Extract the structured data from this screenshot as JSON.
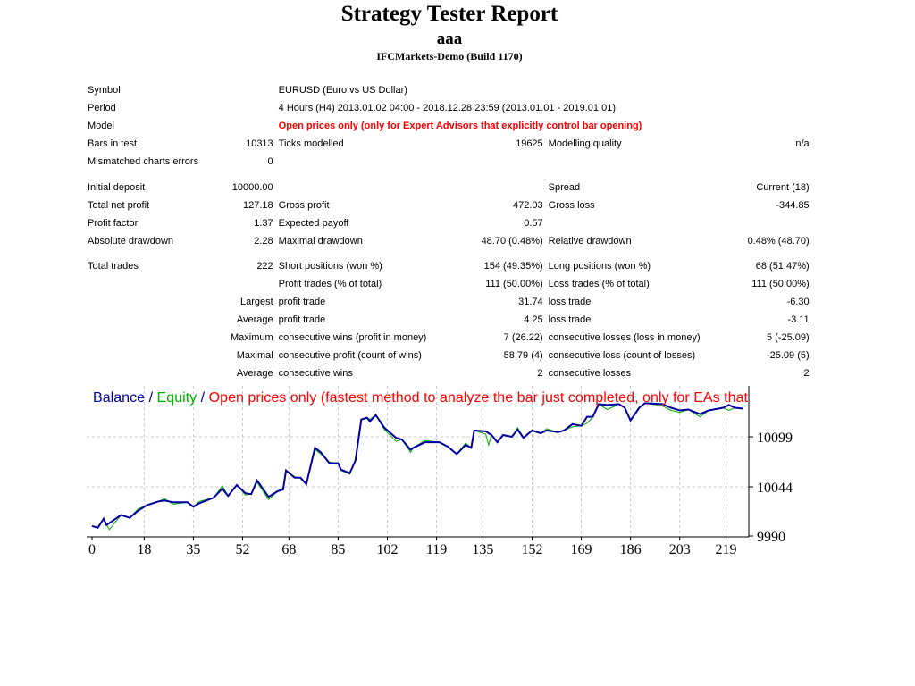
{
  "header": {
    "title": "Strategy Tester Report",
    "expert": "aaa",
    "server": "IFCMarkets-Demo (Build 1170)"
  },
  "info": {
    "symbol_label": "Symbol",
    "symbol": "EURUSD (Euro vs US Dollar)",
    "period_label": "Period",
    "period": "4 Hours (H4) 2013.01.02 04:00 - 2018.12.28 23:59 (2013.01.01 - 2019.01.01)",
    "model_label": "Model",
    "model": "Open prices only (only for Expert Advisors that explicitly control bar opening)",
    "bars_label": "Bars in test",
    "bars": "10313",
    "ticks_label": "Ticks modelled",
    "ticks": "19625",
    "quality_label": "Modelling quality",
    "quality": "n/a",
    "mismatch_label": "Mismatched charts errors",
    "mismatch": "0"
  },
  "results": {
    "deposit_label": "Initial deposit",
    "deposit": "10000.00",
    "spread_label": "Spread",
    "spread": "Current (18)",
    "net_label": "Total net profit",
    "net": "127.18",
    "gross_profit_label": "Gross profit",
    "gross_profit": "472.03",
    "gross_loss_label": "Gross loss",
    "gross_loss": "-344.85",
    "pf_label": "Profit factor",
    "pf": "1.37",
    "payoff_label": "Expected payoff",
    "payoff": "0.57",
    "abs_dd_label": "Absolute drawdown",
    "abs_dd": "2.28",
    "max_dd_label": "Maximal drawdown",
    "max_dd": "48.70 (0.48%)",
    "rel_dd_label": "Relative drawdown",
    "rel_dd": "0.48% (48.70)"
  },
  "trades": {
    "total_label": "Total trades",
    "total": "222",
    "short_label": "Short positions (won %)",
    "short": "154 (49.35%)",
    "long_label": "Long positions (won %)",
    "long": "68 (51.47%)",
    "profit_trades_label": "Profit trades (% of total)",
    "profit_trades": "111 (50.00%)",
    "loss_trades_label": "Loss trades (% of total)",
    "loss_trades": "111 (50.00%)",
    "largest_label": "Largest",
    "largest_profit_label": "profit trade",
    "largest_profit": "31.74",
    "largest_loss_label": "loss trade",
    "largest_loss": "-6.30",
    "average_label": "Average",
    "avg_profit_label": "profit trade",
    "avg_profit": "4.25",
    "avg_loss_label": "loss trade",
    "avg_loss": "-3.11",
    "maximum_label": "Maximum",
    "max_wins_label": "consecutive wins (profit in money)",
    "max_wins": "7 (26.22)",
    "max_losses_label": "consecutive losses (loss in money)",
    "max_losses": "5 (-25.09)",
    "maximal_label": "Maximal",
    "max_profit_label": "consecutive profit (count of wins)",
    "max_profit": "58.79 (4)",
    "max_loss_label": "consecutive loss (count of losses)",
    "max_loss": "-25.09 (5)",
    "average2_label": "Average",
    "avg_wins_label": "consecutive wins",
    "avg_wins": "2",
    "avg_losses_label": "consecutive losses",
    "avg_losses": "2"
  },
  "chart_data": {
    "type": "line",
    "legend": {
      "balance": "Balance",
      "sep": " / ",
      "equity": "Equity",
      "model": "Open prices only (fastest method to analyze the bar just completed, only for EAs that"
    },
    "colors": {
      "balance": "#0000a0",
      "equity": "#00b000",
      "model": "#ff0000"
    },
    "x_ticks": [
      0,
      18,
      35,
      52,
      68,
      85,
      102,
      119,
      135,
      152,
      169,
      186,
      203,
      219
    ],
    "y_ticks": [
      9990,
      10044,
      10099
    ],
    "xlim": [
      0,
      227
    ],
    "ylim": [
      9990,
      10157
    ],
    "grid": true,
    "series": [
      {
        "name": "Balance",
        "x": [
          0,
          2,
          4,
          5,
          10,
          13,
          16,
          19,
          23,
          25,
          28,
          33,
          35,
          37,
          42,
          45,
          47,
          50,
          53,
          55,
          57,
          61,
          64,
          66,
          67,
          70,
          72,
          74,
          77,
          79,
          82,
          85,
          86,
          89,
          91,
          93,
          95,
          96,
          98,
          101,
          105,
          107,
          110,
          111,
          115,
          120,
          123,
          126,
          129,
          131,
          132,
          136,
          138,
          140,
          142,
          145,
          147,
          149,
          152,
          155,
          157,
          161,
          163,
          166,
          169,
          171,
          173,
          175,
          178,
          182,
          184,
          186,
          189,
          191,
          197,
          200,
          203,
          206,
          210,
          213,
          218,
          220,
          222,
          225
        ],
        "y": [
          10001,
          9999,
          10009,
          10002,
          10013,
          10010,
          10018,
          10024,
          10028,
          10029,
          10027,
          10027,
          10022,
          10026,
          10032,
          10042,
          10034,
          10046,
          10037,
          10036,
          10051,
          10033,
          10039,
          10041,
          10062,
          10054,
          10054,
          10047,
          10087,
          10082,
          10070,
          10070,
          10063,
          10059,
          10073,
          10118,
          10120,
          10116,
          10123,
          10109,
          10098,
          10096,
          10085,
          10087,
          10093,
          10093,
          10088,
          10080,
          10090,
          10087,
          10106,
          10105,
          10101,
          10093,
          10101,
          10099,
          10107,
          10098,
          10106,
          10103,
          10106,
          10104,
          10106,
          10113,
          10111,
          10121,
          10121,
          10135,
          10134,
          10135,
          10131,
          10117,
          10131,
          10136,
          10135,
          10131,
          10128,
          10129,
          10124,
          10128,
          10131,
          10134,
          10131,
          10130
        ]
      },
      {
        "name": "Equity",
        "x": [
          0,
          2,
          4,
          6,
          10,
          13,
          16,
          19,
          23,
          25,
          28,
          33,
          35,
          37,
          42,
          45,
          47,
          50,
          53,
          55,
          57,
          61,
          64,
          66,
          67,
          70,
          72,
          74,
          77,
          79,
          82,
          85,
          86,
          89,
          91,
          93,
          95,
          96,
          98,
          101,
          105,
          107,
          110,
          111,
          115,
          120,
          123,
          126,
          129,
          131,
          132,
          136,
          137,
          138,
          140,
          142,
          145,
          147,
          149,
          152,
          155,
          157,
          161,
          163,
          166,
          169,
          171,
          173,
          175,
          178,
          182,
          184,
          186,
          189,
          191,
          197,
          200,
          203,
          206,
          210,
          213,
          218,
          220,
          222,
          225
        ],
        "y": [
          10001,
          9999,
          10009,
          9997,
          10013,
          10010,
          10020,
          10024,
          10028,
          10031,
          10025,
          10027,
          10022,
          10028,
          10032,
          10045,
          10034,
          10046,
          10035,
          10036,
          10049,
          10030,
          10039,
          10043,
          10062,
          10055,
          10054,
          10047,
          10085,
          10080,
          10071,
          10070,
          10062,
          10058,
          10073,
          10118,
          10120,
          10118,
          10123,
          10107,
          10094,
          10096,
          10082,
          10087,
          10095,
          10093,
          10088,
          10080,
          10092,
          10087,
          10106,
          10102,
          10090,
          10101,
          10093,
          10101,
          10099,
          10109,
          10098,
          10106,
          10103,
          10108,
          10104,
          10106,
          10110,
          10111,
          10114,
          10121,
          10135,
          10129,
          10135,
          10131,
          10117,
          10131,
          10136,
          10133,
          10128,
          10126,
          10129,
          10121,
          10128,
          10131,
          10128,
          10131,
          10130
        ]
      }
    ]
  }
}
